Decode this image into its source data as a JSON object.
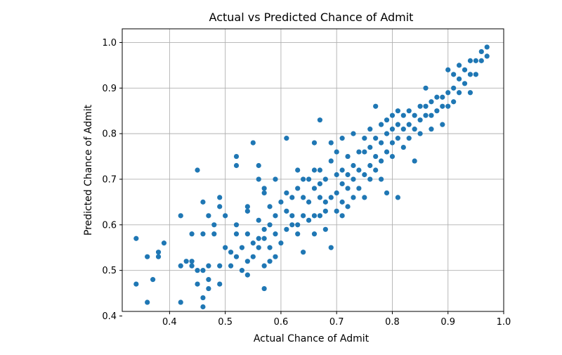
{
  "chart_data": {
    "type": "scatter",
    "title": "Actual vs Predicted Chance  of Admit",
    "xlabel": "Actual Chance of Admit",
    "ylabel": "Predicted Chance of Admit",
    "xlim": [
      0.315,
      1.0
    ],
    "ylim": [
      0.41,
      1.03
    ],
    "xticks": [
      0.4,
      0.5,
      0.6,
      0.7,
      0.8,
      0.9,
      1.0
    ],
    "xtick_labels": [
      "0.4",
      "0.5",
      "0.6",
      "0.7",
      "0.8",
      "0.9",
      "1.0"
    ],
    "yticks": [
      0.4,
      0.5,
      0.6,
      0.7,
      0.8,
      0.9,
      1.0
    ],
    "ytick_labels": [
      "0.4",
      "0.5",
      "0.6",
      "0.7",
      "0.8",
      "0.9",
      "1.0"
    ],
    "grid": true,
    "marker_color": "#1f77b4",
    "series": [
      {
        "points": [
          [
            0.34,
            0.57
          ],
          [
            0.34,
            0.47
          ],
          [
            0.36,
            0.53
          ],
          [
            0.36,
            0.43
          ],
          [
            0.37,
            0.48
          ],
          [
            0.38,
            0.54
          ],
          [
            0.38,
            0.53
          ],
          [
            0.39,
            0.56
          ],
          [
            0.42,
            0.62
          ],
          [
            0.42,
            0.51
          ],
          [
            0.42,
            0.43
          ],
          [
            0.43,
            0.52
          ],
          [
            0.44,
            0.58
          ],
          [
            0.44,
            0.52
          ],
          [
            0.44,
            0.51
          ],
          [
            0.45,
            0.72
          ],
          [
            0.45,
            0.5
          ],
          [
            0.45,
            0.47
          ],
          [
            0.46,
            0.65
          ],
          [
            0.46,
            0.58
          ],
          [
            0.46,
            0.5
          ],
          [
            0.46,
            0.44
          ],
          [
            0.46,
            0.42
          ],
          [
            0.47,
            0.62
          ],
          [
            0.47,
            0.51
          ],
          [
            0.47,
            0.48
          ],
          [
            0.47,
            0.46
          ],
          [
            0.48,
            0.58
          ],
          [
            0.48,
            0.6
          ],
          [
            0.49,
            0.66
          ],
          [
            0.49,
            0.64
          ],
          [
            0.49,
            0.51
          ],
          [
            0.49,
            0.47
          ],
          [
            0.5,
            0.62
          ],
          [
            0.5,
            0.55
          ],
          [
            0.51,
            0.54
          ],
          [
            0.51,
            0.51
          ],
          [
            0.52,
            0.75
          ],
          [
            0.52,
            0.73
          ],
          [
            0.52,
            0.6
          ],
          [
            0.52,
            0.58
          ],
          [
            0.52,
            0.53
          ],
          [
            0.53,
            0.55
          ],
          [
            0.53,
            0.5
          ],
          [
            0.54,
            0.64
          ],
          [
            0.54,
            0.63
          ],
          [
            0.54,
            0.58
          ],
          [
            0.54,
            0.52
          ],
          [
            0.54,
            0.49
          ],
          [
            0.55,
            0.78
          ],
          [
            0.55,
            0.56
          ],
          [
            0.55,
            0.53
          ],
          [
            0.56,
            0.73
          ],
          [
            0.56,
            0.7
          ],
          [
            0.56,
            0.61
          ],
          [
            0.56,
            0.57
          ],
          [
            0.56,
            0.55
          ],
          [
            0.57,
            0.68
          ],
          [
            0.57,
            0.67
          ],
          [
            0.57,
            0.59
          ],
          [
            0.57,
            0.57
          ],
          [
            0.57,
            0.51
          ],
          [
            0.57,
            0.46
          ],
          [
            0.58,
            0.64
          ],
          [
            0.58,
            0.6
          ],
          [
            0.58,
            0.55
          ],
          [
            0.58,
            0.52
          ],
          [
            0.59,
            0.7
          ],
          [
            0.59,
            0.62
          ],
          [
            0.59,
            0.58
          ],
          [
            0.59,
            0.53
          ],
          [
            0.6,
            0.65
          ],
          [
            0.6,
            0.56
          ],
          [
            0.61,
            0.79
          ],
          [
            0.61,
            0.67
          ],
          [
            0.61,
            0.63
          ],
          [
            0.61,
            0.59
          ],
          [
            0.62,
            0.66
          ],
          [
            0.62,
            0.62
          ],
          [
            0.62,
            0.6
          ],
          [
            0.63,
            0.72
          ],
          [
            0.63,
            0.68
          ],
          [
            0.63,
            0.6
          ],
          [
            0.63,
            0.58
          ],
          [
            0.64,
            0.7
          ],
          [
            0.64,
            0.66
          ],
          [
            0.64,
            0.62
          ],
          [
            0.64,
            0.54
          ],
          [
            0.65,
            0.7
          ],
          [
            0.65,
            0.65
          ],
          [
            0.65,
            0.61
          ],
          [
            0.66,
            0.78
          ],
          [
            0.66,
            0.72
          ],
          [
            0.66,
            0.68
          ],
          [
            0.66,
            0.62
          ],
          [
            0.66,
            0.58
          ],
          [
            0.67,
            0.83
          ],
          [
            0.67,
            0.72
          ],
          [
            0.67,
            0.69
          ],
          [
            0.67,
            0.66
          ],
          [
            0.67,
            0.62
          ],
          [
            0.68,
            0.7
          ],
          [
            0.68,
            0.65
          ],
          [
            0.68,
            0.63
          ],
          [
            0.68,
            0.59
          ],
          [
            0.69,
            0.78
          ],
          [
            0.69,
            0.74
          ],
          [
            0.69,
            0.66
          ],
          [
            0.69,
            0.55
          ],
          [
            0.7,
            0.76
          ],
          [
            0.7,
            0.71
          ],
          [
            0.7,
            0.67
          ],
          [
            0.7,
            0.63
          ],
          [
            0.71,
            0.79
          ],
          [
            0.71,
            0.72
          ],
          [
            0.71,
            0.69
          ],
          [
            0.71,
            0.65
          ],
          [
            0.71,
            0.62
          ],
          [
            0.72,
            0.75
          ],
          [
            0.72,
            0.71
          ],
          [
            0.72,
            0.68
          ],
          [
            0.72,
            0.64
          ],
          [
            0.73,
            0.8
          ],
          [
            0.73,
            0.73
          ],
          [
            0.73,
            0.7
          ],
          [
            0.73,
            0.66
          ],
          [
            0.74,
            0.76
          ],
          [
            0.74,
            0.72
          ],
          [
            0.74,
            0.68
          ],
          [
            0.75,
            0.79
          ],
          [
            0.75,
            0.76
          ],
          [
            0.75,
            0.71
          ],
          [
            0.75,
            0.66
          ],
          [
            0.76,
            0.81
          ],
          [
            0.76,
            0.77
          ],
          [
            0.76,
            0.73
          ],
          [
            0.76,
            0.7
          ],
          [
            0.77,
            0.86
          ],
          [
            0.77,
            0.79
          ],
          [
            0.77,
            0.75
          ],
          [
            0.77,
            0.72
          ],
          [
            0.78,
            0.82
          ],
          [
            0.78,
            0.78
          ],
          [
            0.78,
            0.74
          ],
          [
            0.78,
            0.7
          ],
          [
            0.79,
            0.83
          ],
          [
            0.79,
            0.8
          ],
          [
            0.79,
            0.76
          ],
          [
            0.79,
            0.67
          ],
          [
            0.8,
            0.84
          ],
          [
            0.8,
            0.81
          ],
          [
            0.8,
            0.78
          ],
          [
            0.8,
            0.75
          ],
          [
            0.81,
            0.85
          ],
          [
            0.81,
            0.82
          ],
          [
            0.81,
            0.79
          ],
          [
            0.81,
            0.66
          ],
          [
            0.82,
            0.84
          ],
          [
            0.82,
            0.81
          ],
          [
            0.82,
            0.77
          ],
          [
            0.83,
            0.85
          ],
          [
            0.83,
            0.82
          ],
          [
            0.83,
            0.79
          ],
          [
            0.84,
            0.84
          ],
          [
            0.84,
            0.81
          ],
          [
            0.84,
            0.74
          ],
          [
            0.85,
            0.86
          ],
          [
            0.85,
            0.83
          ],
          [
            0.85,
            0.8
          ],
          [
            0.86,
            0.9
          ],
          [
            0.86,
            0.86
          ],
          [
            0.86,
            0.84
          ],
          [
            0.87,
            0.87
          ],
          [
            0.87,
            0.84
          ],
          [
            0.87,
            0.81
          ],
          [
            0.88,
            0.88
          ],
          [
            0.88,
            0.85
          ],
          [
            0.89,
            0.88
          ],
          [
            0.89,
            0.86
          ],
          [
            0.89,
            0.82
          ],
          [
            0.9,
            0.94
          ],
          [
            0.9,
            0.89
          ],
          [
            0.9,
            0.86
          ],
          [
            0.91,
            0.93
          ],
          [
            0.91,
            0.9
          ],
          [
            0.91,
            0.87
          ],
          [
            0.92,
            0.95
          ],
          [
            0.92,
            0.92
          ],
          [
            0.92,
            0.89
          ],
          [
            0.93,
            0.94
          ],
          [
            0.93,
            0.91
          ],
          [
            0.94,
            0.96
          ],
          [
            0.94,
            0.93
          ],
          [
            0.94,
            0.89
          ],
          [
            0.95,
            0.96
          ],
          [
            0.95,
            0.93
          ],
          [
            0.96,
            0.98
          ],
          [
            0.96,
            0.96
          ],
          [
            0.97,
            0.99
          ],
          [
            0.97,
            0.97
          ]
        ]
      }
    ]
  }
}
